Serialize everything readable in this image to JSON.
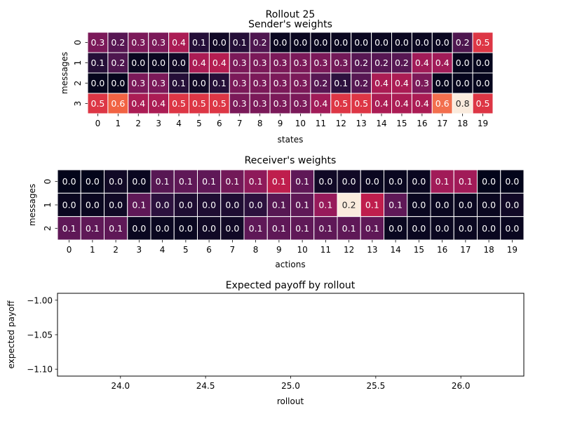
{
  "figure": {
    "suptitle": "Rollout 25"
  },
  "chart_data": [
    {
      "type": "heatmap",
      "title": "Sender's weights",
      "xlabel": "states",
      "ylabel": "messages",
      "x_ticks": [
        "0",
        "1",
        "2",
        "3",
        "4",
        "5",
        "6",
        "7",
        "8",
        "9",
        "10",
        "11",
        "12",
        "13",
        "14",
        "15",
        "16",
        "17",
        "18",
        "19"
      ],
      "y_ticks": [
        "0",
        "1",
        "2",
        "3"
      ],
      "color_range": [
        0.0,
        0.8
      ],
      "values": [
        [
          0.3,
          0.2,
          0.3,
          0.3,
          0.4,
          0.1,
          0.0,
          0.1,
          0.2,
          0.0,
          0.0,
          0.0,
          0.0,
          0.0,
          0.0,
          0.0,
          0.0,
          0.0,
          0.2,
          0.5
        ],
        [
          0.1,
          0.2,
          0.0,
          0.0,
          0.0,
          0.4,
          0.4,
          0.3,
          0.3,
          0.3,
          0.3,
          0.3,
          0.3,
          0.2,
          0.2,
          0.2,
          0.4,
          0.4,
          0.0,
          0.0
        ],
        [
          0.0,
          0.0,
          0.3,
          0.3,
          0.1,
          0.0,
          0.1,
          0.3,
          0.3,
          0.3,
          0.3,
          0.2,
          0.1,
          0.2,
          0.4,
          0.4,
          0.3,
          0.0,
          0.0,
          0.0
        ],
        [
          0.5,
          0.6,
          0.4,
          0.4,
          0.5,
          0.5,
          0.5,
          0.3,
          0.3,
          0.3,
          0.3,
          0.4,
          0.5,
          0.5,
          0.4,
          0.4,
          0.4,
          0.6,
          0.8,
          0.5
        ]
      ],
      "shades": [
        [
          0.3,
          0.22,
          0.3,
          0.3,
          0.4,
          0.1,
          0.04,
          0.1,
          0.2,
          0.02,
          0.02,
          0.02,
          0.02,
          0.02,
          0.02,
          0.02,
          0.02,
          0.02,
          0.2,
          0.52
        ],
        [
          0.1,
          0.2,
          0.02,
          0.02,
          0.04,
          0.4,
          0.42,
          0.3,
          0.3,
          0.3,
          0.3,
          0.3,
          0.28,
          0.22,
          0.22,
          0.22,
          0.38,
          0.38,
          0.01,
          0.01
        ],
        [
          0.01,
          0.01,
          0.3,
          0.3,
          0.1,
          0.04,
          0.1,
          0.3,
          0.3,
          0.3,
          0.3,
          0.22,
          0.12,
          0.22,
          0.4,
          0.4,
          0.3,
          0.01,
          0.01,
          0.01
        ],
        [
          0.52,
          0.6,
          0.4,
          0.4,
          0.52,
          0.52,
          0.52,
          0.3,
          0.3,
          0.3,
          0.3,
          0.38,
          0.52,
          0.52,
          0.4,
          0.4,
          0.4,
          0.62,
          0.8,
          0.52
        ]
      ]
    },
    {
      "type": "heatmap",
      "title": "Receiver's weights",
      "xlabel": "actions",
      "ylabel": "messages",
      "x_ticks": [
        "0",
        "1",
        "2",
        "3",
        "4",
        "5",
        "6",
        "7",
        "8",
        "9",
        "10",
        "11",
        "12",
        "13",
        "14",
        "15",
        "16",
        "17",
        "18",
        "19"
      ],
      "y_ticks": [
        "0",
        "1",
        "2"
      ],
      "color_range": [
        0.0,
        0.2
      ],
      "values": [
        [
          0.0,
          0.0,
          0.0,
          0.0,
          0.1,
          0.1,
          0.1,
          0.1,
          0.1,
          0.1,
          0.1,
          0.0,
          0.0,
          0.0,
          0.0,
          0.0,
          0.1,
          0.1,
          0.0,
          0.0
        ],
        [
          0.0,
          0.0,
          0.0,
          0.1,
          0.0,
          0.0,
          0.0,
          0.0,
          0.0,
          0.1,
          0.1,
          0.1,
          0.2,
          0.1,
          0.1,
          0.0,
          0.0,
          0.0,
          0.0,
          0.0
        ],
        [
          0.1,
          0.1,
          0.1,
          0.0,
          0.0,
          0.0,
          0.0,
          0.0,
          0.1,
          0.1,
          0.1,
          0.1,
          0.1,
          0.1,
          0.0,
          0.0,
          0.0,
          0.0,
          0.0,
          0.0
        ]
      ],
      "shades": [
        [
          0.0,
          0.0,
          0.01,
          0.005,
          0.055,
          0.06,
          0.06,
          0.07,
          0.085,
          0.11,
          0.06,
          0.01,
          0.01,
          0.005,
          0.005,
          0.005,
          0.095,
          0.095,
          0.0,
          0.0
        ],
        [
          0.005,
          0.005,
          0.01,
          0.06,
          0.03,
          0.02,
          0.02,
          0.02,
          0.03,
          0.055,
          0.06,
          0.09,
          0.2,
          0.11,
          0.06,
          0.005,
          0.005,
          0.005,
          0.005,
          0.01
        ],
        [
          0.06,
          0.06,
          0.06,
          0.005,
          0.005,
          0.005,
          0.01,
          0.01,
          0.06,
          0.06,
          0.06,
          0.06,
          0.06,
          0.06,
          0.005,
          0.005,
          0.005,
          0.005,
          0.005,
          0.005
        ]
      ]
    },
    {
      "type": "line",
      "title": "Expected payoff by rollout",
      "xlabel": "rollout",
      "ylabel": "expected payoff",
      "xlim": [
        23.63,
        26.37
      ],
      "ylim": [
        -1.11,
        -0.99
      ],
      "x_ticks": [
        "24.0",
        "24.5",
        "25.0",
        "25.5",
        "26.0"
      ],
      "x_tick_values": [
        24.0,
        24.5,
        25.0,
        25.5,
        26.0
      ],
      "y_ticks": [
        "−1.00",
        "−1.05",
        "−1.10"
      ],
      "y_tick_values": [
        -1.0,
        -1.05,
        -1.1
      ],
      "series": []
    }
  ]
}
